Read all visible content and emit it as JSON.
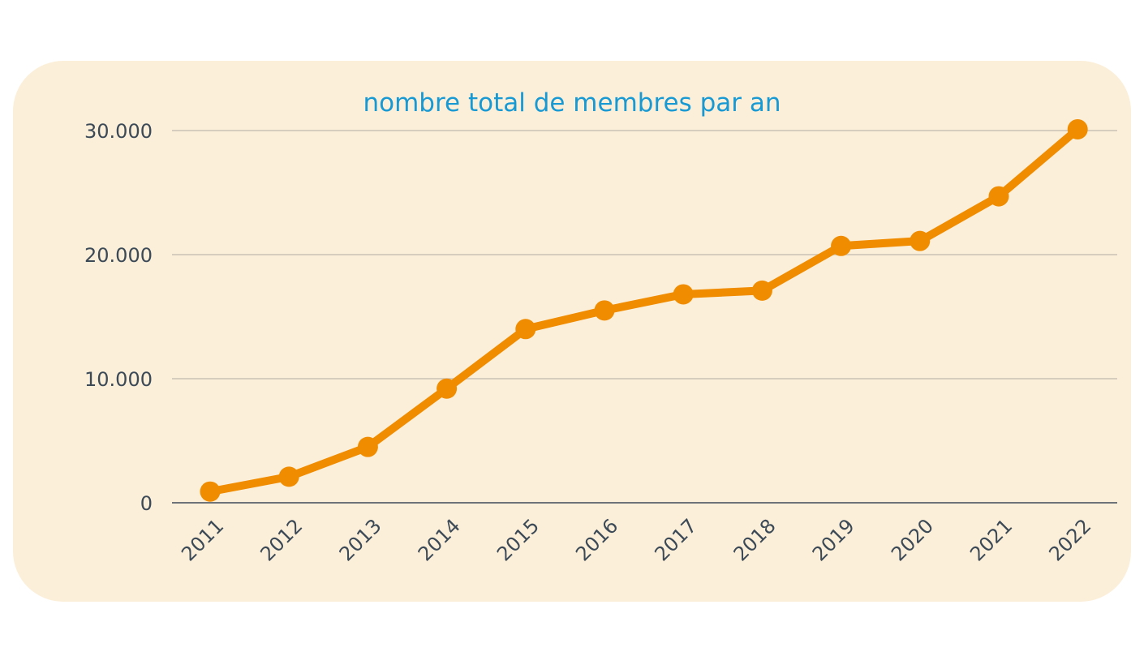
{
  "chart_data": {
    "type": "line",
    "title": "nombre total de membres par an",
    "xlabel": "",
    "ylabel": "",
    "categories": [
      "2011",
      "2012",
      "2013",
      "2014",
      "2015",
      "2016",
      "2017",
      "2018",
      "2019",
      "2020",
      "2021",
      "2022"
    ],
    "series": [
      {
        "values": [
          900,
          2100,
          4500,
          9200,
          14000,
          15500,
          16800,
          17100,
          20700,
          21100,
          24700,
          30100
        ]
      }
    ],
    "ylim": [
      0,
      30000
    ],
    "yticks": [
      0,
      10000,
      20000,
      30000
    ],
    "ytick_labels": [
      "0",
      "10.000",
      "20.000",
      "30.000"
    ],
    "grid": true,
    "legend": "none",
    "colors": {
      "line": "#f08c00",
      "title": "#1799d4",
      "background": "#fcefd9",
      "grid": "#c9c2b5",
      "axis": "#6d7378",
      "tick_text": "#3c4a57"
    }
  }
}
